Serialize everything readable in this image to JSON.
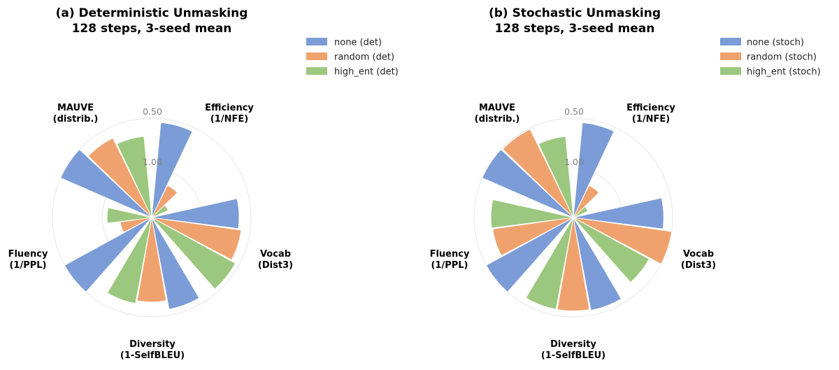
{
  "chart_data": [
    {
      "type": "polar-bar",
      "title_lines": [
        "(a) Deterministic Unmasking",
        "128 steps, 3-seed mean"
      ],
      "axes": [
        {
          "label_lines": [
            "Efficiency",
            "(1/NFE)"
          ]
        },
        {
          "label_lines": [
            "Vocab",
            "(Dist3)"
          ]
        },
        {
          "label_lines": [
            "Diversity",
            "(1-SelfBLEU)"
          ]
        },
        {
          "label_lines": [
            "Fluency",
            "(1/PPL)"
          ]
        },
        {
          "label_lines": [
            "MAUVE",
            "(distrib.)"
          ]
        }
      ],
      "rlim": [
        0,
        1
      ],
      "rticks": [
        {
          "value": 0.5,
          "label": "0.50"
        },
        {
          "value": 1.0,
          "label": "1.00"
        }
      ],
      "series": [
        {
          "name": "none (det)",
          "color": "#7b9cd6",
          "values": [
            0.96,
            0.88,
            0.94,
            1.0,
            1.0
          ]
        },
        {
          "name": "random (det)",
          "color": "#f0a26e",
          "values": [
            0.36,
            0.91,
            0.85,
            0.32,
            0.89
          ]
        },
        {
          "name": "high_ent (det)",
          "color": "#9cc77e",
          "values": [
            0.18,
            0.96,
            0.88,
            0.45,
            0.82
          ]
        }
      ],
      "legend_position": "upper right"
    },
    {
      "type": "polar-bar",
      "title_lines": [
        "(b) Stochastic Unmasking",
        "128 steps, 3-seed mean"
      ],
      "axes": [
        {
          "label_lines": [
            "Efficiency",
            "(1/NFE)"
          ]
        },
        {
          "label_lines": [
            "Vocab",
            "(Dist3)"
          ]
        },
        {
          "label_lines": [
            "Diversity",
            "(1-SelfBLEU)"
          ]
        },
        {
          "label_lines": [
            "Fluency",
            "(1/PPL)"
          ]
        },
        {
          "label_lines": [
            "MAUVE",
            "(distrib.)"
          ]
        }
      ],
      "rlim": [
        0,
        1
      ],
      "rticks": [
        {
          "value": 0.5,
          "label": "0.50"
        },
        {
          "value": 1.0,
          "label": "1.00"
        }
      ],
      "series": [
        {
          "name": "none (stoch)",
          "color": "#7b9cd6",
          "values": [
            0.96,
            0.91,
            0.95,
            1.0,
            1.0
          ]
        },
        {
          "name": "random (stoch)",
          "color": "#f0a26e",
          "values": [
            0.36,
            1.0,
            0.94,
            0.82,
            0.99
          ]
        },
        {
          "name": "high_ent (stoch)",
          "color": "#9cc77e",
          "values": [
            0.16,
            0.87,
            0.94,
            0.83,
            0.82
          ]
        }
      ],
      "legend_position": "upper right"
    }
  ]
}
